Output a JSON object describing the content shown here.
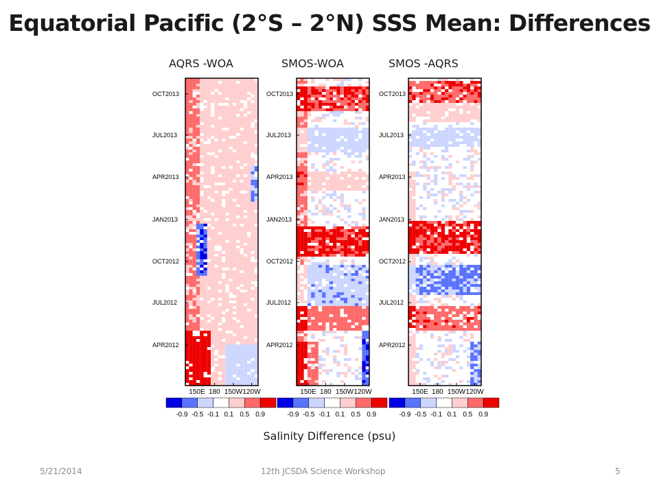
{
  "slide": {
    "title": "Equatorial Pacific (2°S – 2°N) SSS Mean:  Differences",
    "xlabel": "Salinity Difference (psu)",
    "footer": {
      "date": "5/21/2014",
      "event": "12th JCSDA Science Workshop",
      "page": "5"
    }
  },
  "chart_data": [
    {
      "type": "heatmap",
      "title": "AQRS -WOA",
      "x_ticks": [
        "150E",
        "180",
        "150W",
        "120W"
      ],
      "y_ticks": [
        "APR2012",
        "JUL2012",
        "OCT2012",
        "JAN2013",
        "APR2013",
        "JUL2013",
        "OCT2013"
      ],
      "dominant_sign": "positive",
      "colorbar": {
        "levels": [
          "-0.9",
          "-0.5",
          "-0.1",
          "0.1",
          "0.5",
          "0.9"
        ],
        "colors": [
          "#0000e6",
          "#5a73ff",
          "#cdd6ff",
          "#ffffff",
          "#ffcfcf",
          "#ff6b6b",
          "#ee0000"
        ]
      }
    },
    {
      "type": "heatmap",
      "title": "SMOS-WOA",
      "x_ticks": [
        "150E",
        "180",
        "150W",
        "120W"
      ],
      "y_ticks": [
        "APR2012",
        "JUL2012",
        "OCT2012",
        "JAN2013",
        "APR2013",
        "JUL2013",
        "OCT2013"
      ],
      "dominant_sign": "banded",
      "colorbar": {
        "levels": [
          "-0.9",
          "-0.5",
          "-0.1",
          "0.1",
          "0.5",
          "0.9"
        ],
        "colors": [
          "#0000e6",
          "#5a73ff",
          "#cdd6ff",
          "#ffffff",
          "#ffcfcf",
          "#ff6b6b",
          "#ee0000"
        ]
      }
    },
    {
      "type": "heatmap",
      "title": "SMOS -AQRS",
      "x_ticks": [
        "150E",
        "180",
        "150W",
        "120W"
      ],
      "y_ticks": [
        "APR2012",
        "JUL2012",
        "OCT2012",
        "JAN2013",
        "APR2013",
        "JUL2013",
        "OCT2013"
      ],
      "dominant_sign": "banded",
      "colorbar": {
        "levels": [
          "-0.9",
          "-0.5",
          "-0.1",
          "0.1",
          "0.5",
          "0.9"
        ],
        "colors": [
          "#0000e6",
          "#5a73ff",
          "#cdd6ff",
          "#ffffff",
          "#ffcfcf",
          "#ff6b6b",
          "#ee0000"
        ]
      }
    }
  ]
}
